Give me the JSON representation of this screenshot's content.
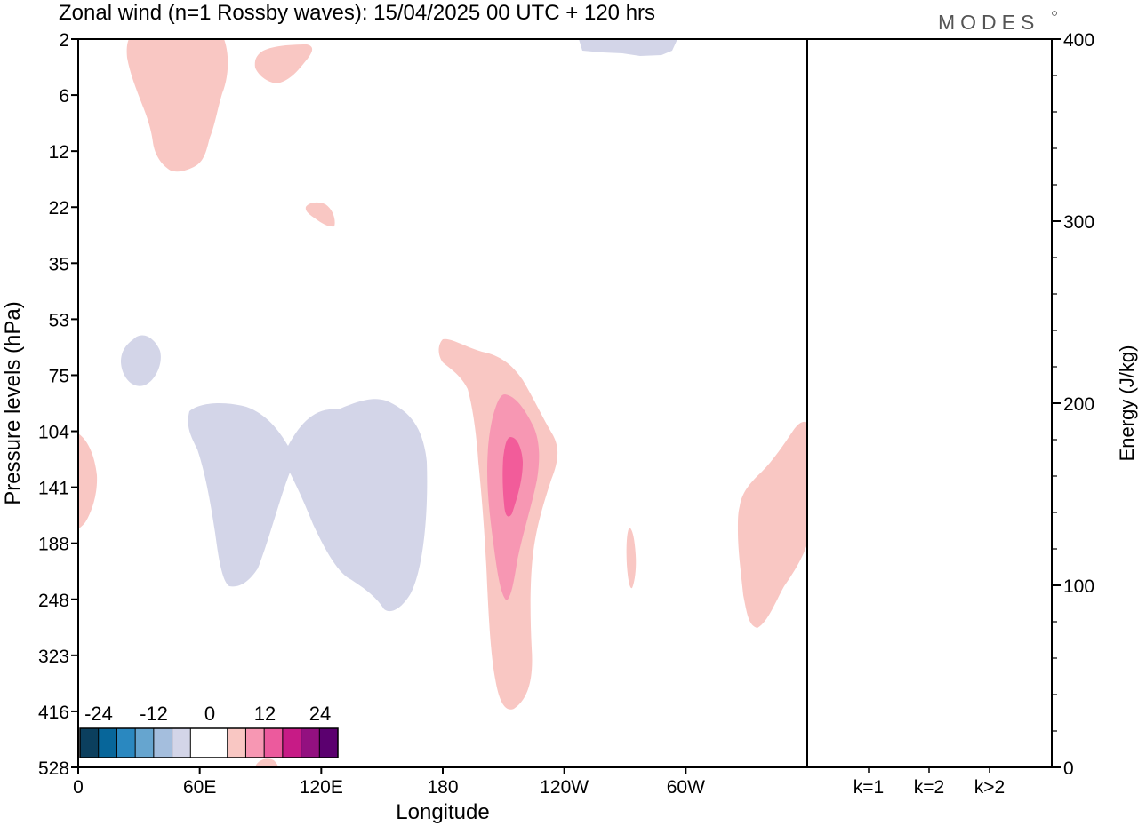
{
  "header": {
    "title": "Zonal wind (n=1 Rossby waves):  15/04/2025  00 UTC  + 120 hrs",
    "brand": "MODES"
  },
  "colors": {
    "neg_light": "#d3d5e8",
    "pos_light": "#f9c7c3",
    "pos_mid": "#f797b3",
    "pos_dark": "#f25c9a",
    "colorbar": [
      "#0b3f5e",
      "#07669a",
      "#2a88c0",
      "#66a5cf",
      "#a4bedd",
      "#d3d5e8",
      "#ffffff",
      "#ffffff",
      "#f9c7c3",
      "#f797b3",
      "#ec5a9d",
      "#c71b86",
      "#931080",
      "#5b006f"
    ]
  },
  "chart_data": [
    {
      "type": "heatmap",
      "title": "Zonal wind (n=1 Rossby waves):  15/04/2025  00 UTC  + 120 hrs",
      "xlabel": "Longitude",
      "ylabel": "Pressure levels (hPa)",
      "x_ticks": [
        "0",
        "60E",
        "120E",
        "180",
        "120W",
        "60W"
      ],
      "y_ticks": [
        "2",
        "6",
        "12",
        "22",
        "35",
        "53",
        "75",
        "104",
        "141",
        "188",
        "248",
        "323",
        "416",
        "528"
      ],
      "colorbar": {
        "labels": [
          "-24",
          "-12",
          "0",
          "12",
          "24"
        ]
      }
    },
    {
      "type": "bar",
      "ylabel": "Energy (J/kg)",
      "categories": [
        "k=1",
        "k=2",
        "k>2"
      ],
      "values": [
        0.5,
        0.4,
        0.3
      ],
      "ylim": [
        0,
        400
      ],
      "y_ticks": [
        "0",
        "100",
        "200",
        "300",
        "400"
      ]
    }
  ]
}
